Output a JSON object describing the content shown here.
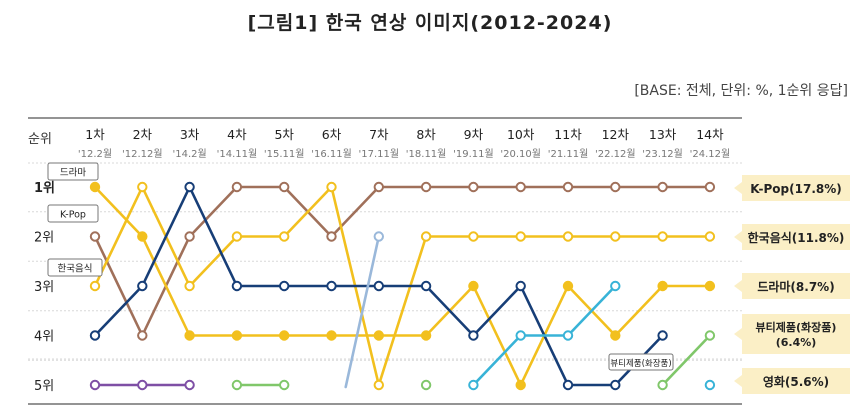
{
  "title": "[그림1] 한국 연상 이미지(2012-2024)",
  "base_note": "[BASE: 전체, 단위: %, 1순위 응답]",
  "colors": {
    "drama": "#F2C01E",
    "kpop": "#A0705A",
    "food": "#F2C01E",
    "music": "#173E77",
    "beauty": "#38B3D7",
    "movie": "#9AB8DA",
    "purple": "#7E4FA5",
    "green": "#80C76A",
    "grid": "#D8D8D8",
    "callout_bg": "#FBEFC6"
  },
  "chart_data": {
    "type": "line",
    "title": "[그림1] 한국 연상 이미지(2012-2024)",
    "y_axis_header": "순위",
    "rank_labels": [
      "1위",
      "2위",
      "3위",
      "4위",
      "5위"
    ],
    "x": [
      {
        "label": "1차",
        "sub": "'12.2월"
      },
      {
        "label": "2차",
        "sub": "'12.12월"
      },
      {
        "label": "3차",
        "sub": "'14.2월"
      },
      {
        "label": "4차",
        "sub": "'14.11월"
      },
      {
        "label": "5차",
        "sub": "'15.11월"
      },
      {
        "label": "6차",
        "sub": "'16.11월"
      },
      {
        "label": "7차",
        "sub": "'17.11월"
      },
      {
        "label": "8차",
        "sub": "'18.11월"
      },
      {
        "label": "9차",
        "sub": "'19.11월"
      },
      {
        "label": "10차",
        "sub": "'20.10월"
      },
      {
        "label": "11차",
        "sub": "'21.11월"
      },
      {
        "label": "12차",
        "sub": "'22.12월"
      },
      {
        "label": "13차",
        "sub": "'23.12월"
      },
      {
        "label": "14차",
        "sub": "'24.12월"
      }
    ],
    "ylim": [
      1,
      5
    ],
    "series": [
      {
        "key": "kpop",
        "name": "K-Pop(17.8%)",
        "color": "#A0705A",
        "marker": "open",
        "ranks": [
          2,
          4,
          2,
          1,
          1,
          2,
          1,
          1,
          1,
          1,
          1,
          1,
          1,
          1
        ]
      },
      {
        "key": "food",
        "name": "한국음식(11.8%)",
        "color": "#F2C01E",
        "marker": "open",
        "ranks": [
          3,
          1,
          3,
          2,
          2,
          1,
          5,
          2,
          2,
          2,
          2,
          2,
          2,
          2
        ]
      },
      {
        "key": "drama",
        "name": "드라마(8.7%)",
        "color": "#F2C01E",
        "marker": "filled",
        "ranks": [
          1,
          2,
          4,
          4,
          4,
          4,
          4,
          4,
          3,
          5,
          3,
          4,
          3,
          3
        ]
      },
      {
        "key": "music",
        "name": "",
        "color": "#173E77",
        "marker": "open",
        "ranks": [
          4,
          3,
          1,
          3,
          3,
          3,
          3,
          3,
          4,
          3,
          5,
          5,
          4,
          null
        ]
      },
      {
        "key": "beauty",
        "name": "뷰티제품(화장품)(6.4%)",
        "color": "#38B3D7",
        "marker": "open",
        "ranks": [
          null,
          null,
          null,
          null,
          null,
          null,
          null,
          null,
          5,
          4,
          4,
          3,
          null,
          5
        ]
      },
      {
        "key": "beauty_new",
        "name": "",
        "color": "#80C76A",
        "marker": "open",
        "ranks": [
          null,
          null,
          null,
          null,
          null,
          null,
          null,
          null,
          null,
          null,
          null,
          null,
          5,
          4
        ]
      },
      {
        "key": "movie",
        "name": "영화(5.6%)",
        "color": "#9AB8DA",
        "marker": "open",
        "ranks": [
          null,
          null,
          null,
          null,
          null,
          null,
          2,
          null,
          null,
          null,
          null,
          null,
          null,
          null
        ],
        "segment_from": {
          "idx": 5.3,
          "rank": 5
        }
      },
      {
        "key": "purple",
        "name": "",
        "color": "#7E4FA5",
        "marker": "open",
        "ranks": [
          5,
          5,
          5,
          null,
          null,
          null,
          null,
          null,
          null,
          null,
          null,
          null,
          null,
          null
        ]
      },
      {
        "key": "green1",
        "name": "",
        "color": "#80C76A",
        "marker": "open",
        "ranks": [
          null,
          null,
          null,
          5,
          5,
          null,
          null,
          5,
          null,
          null,
          null,
          null,
          null,
          null
        ]
      }
    ],
    "legend_callouts": [
      "K-Pop(17.8%)",
      "한국음식(11.8%)",
      "드라마(8.7%)",
      "뷰티제품(화장품)(6.4%)",
      "영화(5.6%)"
    ],
    "start_tags": [
      "드라마",
      "K-Pop",
      "한국음식"
    ],
    "end_tag": "뷰티제품(화장품)"
  }
}
